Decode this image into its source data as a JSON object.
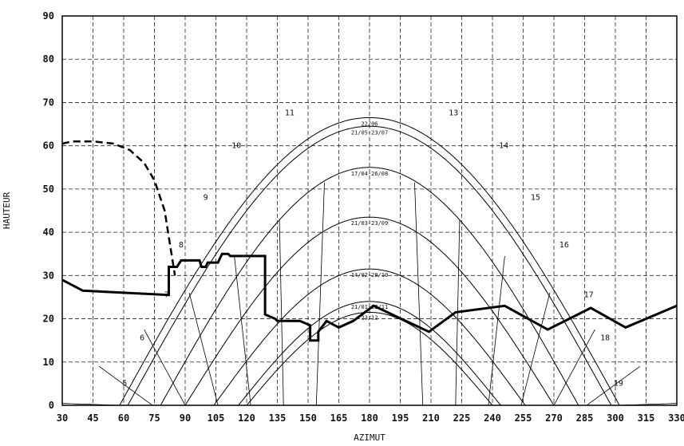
{
  "chart_data": {
    "type": "line",
    "xlabel": "AZIMUT",
    "ylabel": "HAUTEUR",
    "xlim": [
      30,
      330
    ],
    "ylim": [
      0,
      90
    ],
    "x_ticks": [
      30,
      45,
      60,
      75,
      90,
      105,
      120,
      135,
      150,
      165,
      180,
      195,
      210,
      225,
      240,
      255,
      270,
      285,
      300,
      315,
      330
    ],
    "y_ticks": [
      0,
      10,
      20,
      30,
      40,
      50,
      60,
      70,
      80,
      90
    ],
    "x_tick_labels": [
      "30",
      "45",
      "60",
      "75",
      "90",
      "105",
      "120",
      "135",
      "150",
      "165",
      "180",
      "195",
      "210",
      "225",
      "240",
      "255",
      "270",
      "285",
      "300",
      "315",
      "330"
    ],
    "y_tick_labels": [
      "0",
      "10",
      "20",
      "30",
      "40",
      "50",
      "60",
      "70",
      "80",
      "90"
    ],
    "grid": true,
    "sun_paths": [
      {
        "label": "22/06",
        "max": 66.5,
        "halfwidth": 122
      },
      {
        "label": "21/05-23/07",
        "max": 64.5,
        "halfwidth": 118
      },
      {
        "label": "17/04-26/08",
        "max": 55.0,
        "halfwidth": 102
      },
      {
        "label": "21/03-23/09",
        "max": 43.5,
        "halfwidth": 90
      },
      {
        "label": "14/02-28/10",
        "max": 31.5,
        "halfwidth": 76
      },
      {
        "label": "21/01-22/11",
        "max": 24.0,
        "halfwidth": 64
      },
      {
        "label": "23/12",
        "max": 21.5,
        "halfwidth": 60
      }
    ],
    "hour_labels": [
      {
        "text": "5",
        "x": 60.5,
        "y": 4.5
      },
      {
        "text": "6",
        "x": 69,
        "y": 15
      },
      {
        "text": "7",
        "x": 81,
        "y": 25
      },
      {
        "text": "8",
        "x": 88,
        "y": 36.5
      },
      {
        "text": "9",
        "x": 100,
        "y": 47.5
      },
      {
        "text": "10",
        "x": 115,
        "y": 59.5
      },
      {
        "text": "11",
        "x": 141,
        "y": 67
      },
      {
        "text": "13",
        "x": 221,
        "y": 67
      },
      {
        "text": "14",
        "x": 245.5,
        "y": 59.5
      },
      {
        "text": "15",
        "x": 261,
        "y": 47.5
      },
      {
        "text": "16",
        "x": 275,
        "y": 36.5
      },
      {
        "text": "17",
        "x": 287,
        "y": 25
      },
      {
        "text": "18",
        "x": 295,
        "y": 15
      },
      {
        "text": "19",
        "x": 301.5,
        "y": 4.5
      }
    ],
    "series": [
      {
        "style": "solid-bold",
        "x": [
          30,
          40,
          82,
          82,
          86,
          88,
          97,
          98,
          100,
          101,
          106,
          108,
          111,
          112,
          113,
          125,
          129,
          129,
          134,
          135,
          146,
          151,
          151,
          155,
          155,
          159,
          165,
          172,
          182,
          209,
          222,
          246,
          267,
          288,
          305,
          330
        ],
        "y": [
          29,
          26.5,
          25.5,
          32,
          32,
          33.5,
          33.5,
          32,
          32,
          33,
          33,
          35,
          35,
          34.5,
          34.5,
          34.5,
          34.5,
          21,
          20,
          19.5,
          19.5,
          18.5,
          15,
          15,
          17,
          19.5,
          18,
          19.5,
          23,
          17,
          21.5,
          23,
          17.5,
          22.5,
          18,
          23
        ]
      },
      {
        "style": "dashed-bold",
        "x": [
          30,
          35,
          45,
          55,
          63,
          70,
          75,
          80,
          83,
          85
        ],
        "y": [
          60.5,
          61,
          61,
          60.5,
          59,
          56,
          52,
          45,
          36,
          30
        ]
      }
    ]
  }
}
